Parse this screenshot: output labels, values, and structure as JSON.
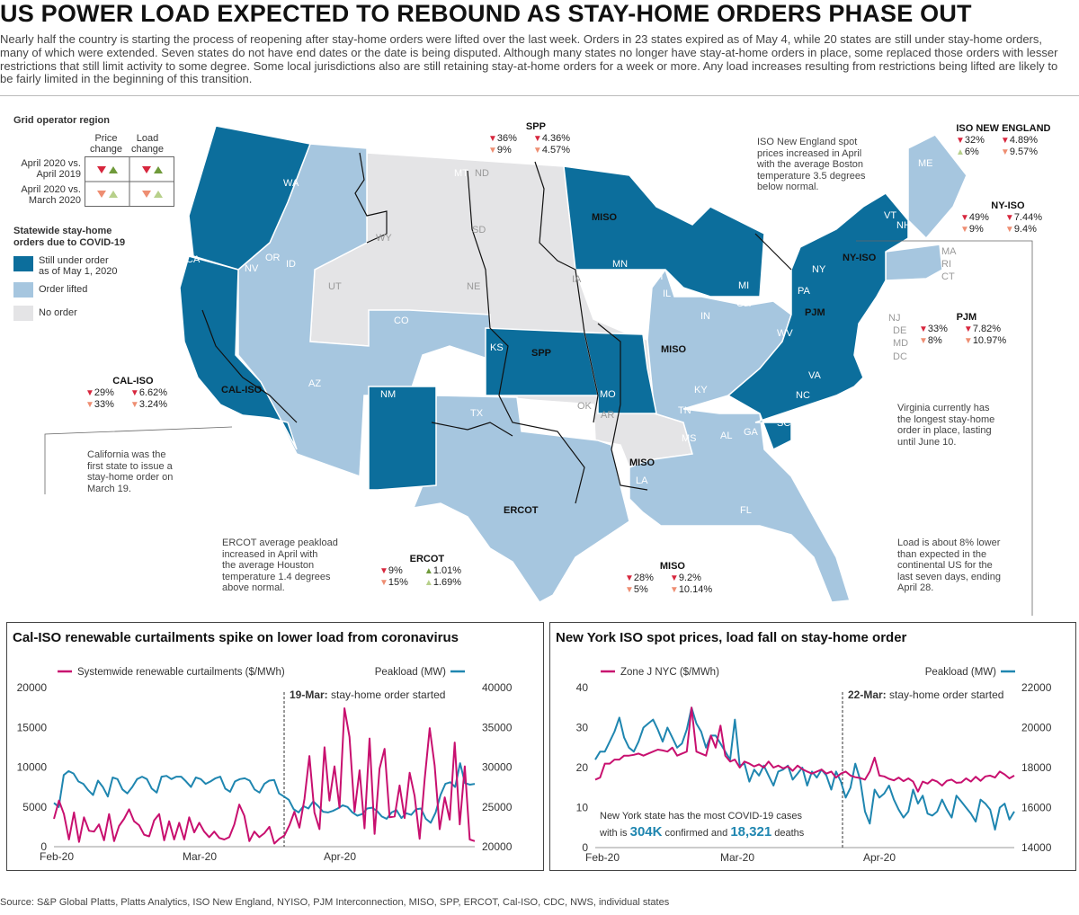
{
  "title": "US POWER LOAD EXPECTED TO REBOUND AS STAY-HOME ORDERS PHASE OUT",
  "intro": "Nearly half the country is starting the process of reopening after stay-home orders were lifted over the last week. Orders in 23 states expired as of May 4, while 20 states are still under stay-home orders, many of which were extended. Seven states do not have end dates or the date is being disputed. Although many states no longer have stay-at-home orders in place, some replaced those orders with lesser restrictions that still limit activity to some degree. Some local jurisdictions also are still retaining stay-at-home orders for a week or more. Any load increases resulting from restrictions being lifted are likely to be fairly limited in the beginning of this transition.",
  "colors": {
    "still_under": "#0c6e9c",
    "lifted": "#a6c6df",
    "no_order": "#e4e4e6",
    "down_red": "#d7263d",
    "down_salmon": "#ee8e72",
    "up_green": "#6f9a3a",
    "up_light": "#b7d08a",
    "magenta": "#c8106f",
    "blue": "#1f86b0"
  },
  "legend": {
    "grid_title": "Grid operator region",
    "col_price": "Price\nchange",
    "col_load": "Load\nchange",
    "row1": "April 2020 vs.\nApril 2019",
    "row2": "April 2020 vs.\nMarch 2020",
    "orders_title": "Statewide stay-home\norders due to COVID-19",
    "still": "Still under order\nas of May 1, 2020",
    "lifted": "Order lifted",
    "none": "No order"
  },
  "regions": [
    {
      "name": "SPP",
      "row1": [
        "▼ 36%",
        "▼ 4.36%"
      ],
      "row2": [
        "▼ 9%",
        "▼ 4.57%"
      ]
    },
    {
      "name": "ISO NEW ENGLAND",
      "row1": [
        "▼ 32%",
        "▼ 4.89%"
      ],
      "row2": [
        "▲ 6%",
        "▼ 9.57%"
      ]
    },
    {
      "name": "NY-ISO",
      "row1": [
        "▼ 49%",
        "▼ 7.44%"
      ],
      "row2": [
        "▼ 9%",
        "▼ 9.4%"
      ]
    },
    {
      "name": "PJM",
      "row1": [
        "▼ 33%",
        "▼ 7.82%"
      ],
      "row2": [
        "▼ 8%",
        "▼ 10.97%"
      ]
    },
    {
      "name": "CAL-ISO",
      "row1": [
        "▼ 29%",
        "▼ 6.62%"
      ],
      "row2": [
        "▼ 33%",
        "▼ 3.24%"
      ]
    },
    {
      "name": "ERCOT",
      "row1": [
        "▼ 9%",
        "▲ 1.01%"
      ],
      "row2": [
        "▼ 15%",
        "▲ 1.69%"
      ]
    },
    {
      "name": "MISO",
      "row1": [
        "▼ 28%",
        "▼ 9.2%"
      ],
      "row2": [
        "▼ 5%",
        "▼ 10.14%"
      ]
    }
  ],
  "map_labels": {
    "states": [
      "WA",
      "OR",
      "CA",
      "NV",
      "ID",
      "MT",
      "WY",
      "UT",
      "CO",
      "AZ",
      "NM",
      "ND",
      "SD",
      "NE",
      "KS",
      "OK",
      "TX",
      "MN",
      "IA",
      "MO",
      "AR",
      "LA",
      "WI",
      "IL",
      "MI",
      "IN",
      "OH",
      "KY",
      "TN",
      "MS",
      "AL",
      "GA",
      "FL",
      "SC",
      "NC",
      "VA",
      "WV",
      "PA",
      "NY",
      "VT",
      "NH",
      "ME",
      "MA",
      "RI",
      "CT",
      "NJ",
      "DE",
      "MD",
      "DC"
    ],
    "iso": [
      "MISO",
      "SPP",
      "MISO",
      "MISO",
      "ERCOT",
      "CAL-ISO",
      "PJM",
      "NY-ISO"
    ]
  },
  "notes": {
    "iso_ne": "ISO New England spot\nprices increased in April\nwith the average Boston\ntemperature 3.5 degrees\nbelow normal.",
    "virginia": "Virginia currently has\nthe longest stay-home\norder in place, lasting\nuntil June 10.",
    "california": "California was the\nfirst state to issue a\nstay-home order on\nMarch 19.",
    "ercot": "ERCOT average peakload\nincreased in April with\nthe average Houston\ntemperature 1.4 degrees\nabove normal.",
    "load": "Load is about 8% lower\nthan expected in the\ncontinental US for the\nlast seven days, ending\nApril 28."
  },
  "chart_data": [
    {
      "type": "line",
      "title": "Cal-ISO renewable curtailments spike on lower load from coronavirus",
      "x_ticks": [
        "Feb-20",
        "Mar-20",
        "Apr-20"
      ],
      "annotation": {
        "bold": "19-Mar:",
        "text": " stay-home order started"
      },
      "series": [
        {
          "name": "Systemwide renewable curtailments ($/MWh)",
          "axis": "left",
          "ylim": [
            0,
            20000
          ],
          "ticks": [
            0,
            5000,
            10000,
            15000,
            20000
          ],
          "values": [
            3500,
            5800,
            4100,
            900,
            4300,
            600,
            3700,
            2000,
            1900,
            2800,
            800,
            4100,
            700,
            2600,
            3500,
            4700,
            3200,
            2700,
            1500,
            1300,
            3300,
            4100,
            800,
            3200,
            900,
            3000,
            900,
            3700,
            1800,
            3000,
            1900,
            1200,
            1900,
            1100,
            900,
            1200,
            2800,
            5300,
            3900,
            700,
            1900,
            1200,
            1700,
            2500,
            400,
            1000,
            1400,
            2700,
            4400,
            2400,
            6000,
            11400,
            4300,
            2200,
            12500,
            5800,
            10100,
            4900,
            17400,
            13800,
            4400,
            9600,
            2300,
            13600,
            1600,
            9800,
            12300,
            3700,
            3800,
            7700,
            3600,
            9300,
            6400,
            1000,
            8500,
            14900,
            10200,
            2200,
            6200,
            3400,
            13100,
            2800,
            10100,
            900,
            700
          ]
        },
        {
          "name": "Peakload (MW)",
          "axis": "right",
          "ylim": [
            20000,
            40000
          ],
          "ticks": [
            20000,
            25000,
            30000,
            35000,
            40000
          ],
          "values": [
            25500,
            25000,
            29000,
            29500,
            29200,
            28200,
            27900,
            27100,
            26500,
            28300,
            27500,
            26300,
            28700,
            28500,
            27200,
            26700,
            27500,
            28500,
            28800,
            28500,
            27300,
            26800,
            28800,
            28900,
            28500,
            28800,
            28800,
            28200,
            27500,
            28700,
            28500,
            27900,
            28200,
            28600,
            28800,
            27300,
            26900,
            28200,
            28500,
            28600,
            28300,
            27200,
            26800,
            27900,
            28300,
            28400,
            26700,
            26300,
            25900,
            24700,
            24300,
            25100,
            24800,
            25700,
            25100,
            24400,
            24300,
            24500,
            24800,
            25200,
            25000,
            24300,
            23900,
            24100,
            24800,
            24900,
            24500,
            23800,
            23500,
            24300,
            24600,
            23600,
            24200,
            24000,
            24700,
            24800,
            23500,
            23000,
            24300,
            26500,
            27900,
            28100,
            27500,
            30500,
            28000,
            27800,
            27900
          ]
        }
      ]
    },
    {
      "type": "line",
      "title": "New York ISO spot prices, load fall on stay-home order",
      "x_ticks": [
        "Feb-20",
        "Mar-20",
        "Apr-20"
      ],
      "annotation": {
        "bold": "22-Mar:",
        "text": " stay-home order started"
      },
      "footnote": {
        "pre": "New York state has the most COVID-19 cases",
        "mid": "with is ",
        "cases": "304K",
        "mid2": " confirmed and ",
        "deaths": "18,321",
        "post": " deaths"
      },
      "series": [
        {
          "name": "Zone J NYC ($/MWh)",
          "axis": "left",
          "ylim": [
            0,
            40
          ],
          "ticks": [
            0,
            10,
            20,
            30,
            40
          ],
          "values": [
            17,
            17.5,
            21,
            21,
            22,
            22,
            23,
            23,
            23.2,
            23.5,
            23,
            23.5,
            24,
            24.5,
            24.3,
            24,
            25,
            23,
            23.5,
            24,
            35,
            24,
            23.5,
            23,
            28,
            25,
            30.5,
            23,
            21.5,
            22,
            20,
            21.5,
            21,
            20.3,
            20.8,
            20,
            21.5,
            20,
            20.5,
            19.8,
            20.3,
            19.2,
            20.5,
            19.6,
            19,
            18.5,
            19,
            19.5,
            18.5,
            19,
            17.5,
            18.5,
            19,
            18,
            17.6,
            17.4,
            17,
            19,
            22.5,
            18,
            17.8,
            17.2,
            16.8,
            17.5,
            16.6,
            17.3,
            16.5,
            14,
            16.5,
            16,
            17,
            16.5,
            15.5,
            16.7,
            17,
            16.2,
            16.3,
            17.3,
            16.5,
            17.7,
            16.7,
            17.8,
            18,
            17.5,
            19,
            18.3,
            17.3,
            18
          ]
        },
        {
          "name": "Peakload (MW)",
          "axis": "right",
          "ylim": [
            14000,
            22000
          ],
          "ticks": [
            14000,
            16000,
            18000,
            20000,
            22000
          ],
          "values": [
            18400,
            18800,
            18800,
            19300,
            19800,
            20500,
            19500,
            19000,
            18800,
            19300,
            20000,
            20200,
            20400,
            19900,
            19300,
            20000,
            19500,
            19000,
            19200,
            19900,
            21000,
            20200,
            19800,
            19000,
            19600,
            19600,
            19200,
            18800,
            18400,
            20400,
            18100,
            18200,
            17300,
            17900,
            17600,
            18100,
            17600,
            17100,
            17800,
            17900,
            18100,
            17400,
            17700,
            18000,
            17100,
            17800,
            17500,
            17900,
            17600,
            16900,
            17800,
            17300,
            16500,
            17000,
            18200,
            17400,
            15800,
            15200,
            16900,
            16500,
            16700,
            17100,
            16400,
            15900,
            15500,
            15800,
            16900,
            16200,
            16600,
            15700,
            15600,
            15800,
            16400,
            15900,
            15500,
            16600,
            16300,
            16000,
            15700,
            15300,
            16400,
            16200,
            15900,
            14900,
            16000,
            16200,
            15400,
            15800
          ]
        }
      ]
    }
  ],
  "source": "Source: S&P Global Platts, Platts Analytics, ISO New England, NYISO, PJM Interconnection, MISO, SPP, ERCOT, Cal-ISO, CDC, NWS, individual states"
}
